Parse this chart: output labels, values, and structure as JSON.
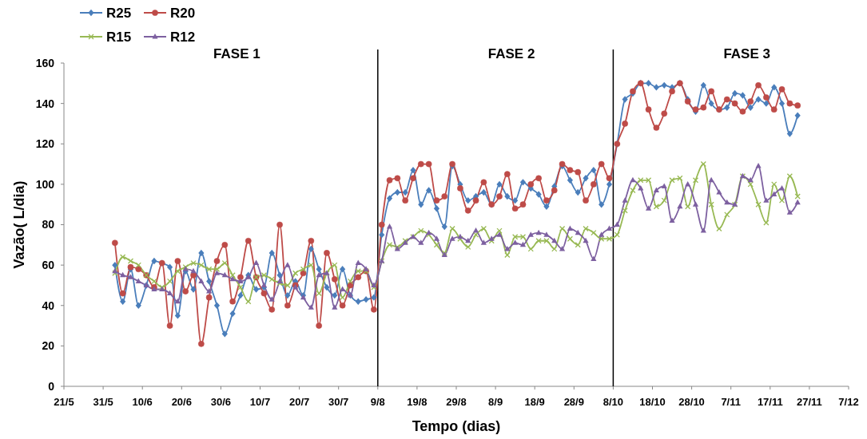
{
  "chart_data": {
    "type": "line",
    "xlabel": "Tempo (dias)",
    "ylabel": "Vazão( L/dia)",
    "annotations": [
      "FASE 1",
      "FASE 2",
      "FASE 3"
    ],
    "x": [
      "--06-03",
      "--06-05",
      "--06-07",
      "--06-09",
      "--06-11",
      "--06-13",
      "--06-15",
      "--06-17",
      "--06-19",
      "--06-21",
      "--06-23",
      "--06-25",
      "--06-27",
      "--06-29",
      "--07-01",
      "--07-03",
      "--07-05",
      "--07-07",
      "--07-09",
      "--07-11",
      "--07-13",
      "--07-15",
      "--07-17",
      "--07-19",
      "--07-21",
      "--07-23",
      "--07-25",
      "--07-27",
      "--07-29",
      "--07-31",
      "--08-02",
      "--08-04",
      "--08-06",
      "--08-08",
      "--08-10",
      "--08-12",
      "--08-14",
      "--08-16",
      "--08-18",
      "--08-20",
      "--08-22",
      "--08-24",
      "--08-26",
      "--08-28",
      "--08-30",
      "--09-01",
      "--09-03",
      "--09-05",
      "--09-07",
      "--09-09",
      "--09-11",
      "--09-13",
      "--09-15",
      "--09-17",
      "--09-19",
      "--09-21",
      "--09-23",
      "--09-25",
      "--09-27",
      "--09-29",
      "--10-01",
      "--10-03",
      "--10-05",
      "--10-07",
      "--10-09",
      "--10-11",
      "--10-13",
      "--10-15",
      "--10-17",
      "--10-19",
      "--10-21",
      "--10-23",
      "--10-25",
      "--10-27",
      "--10-29",
      "--10-31",
      "--11-02",
      "--11-04",
      "--11-06",
      "--11-08",
      "--11-10",
      "--11-12",
      "--11-14",
      "--11-16",
      "--11-18",
      "--11-20",
      "--11-22",
      "--11-24"
    ],
    "series": [
      {
        "name": "R25",
        "color": "#4a7ebb",
        "marker": "diamond",
        "values": [
          60,
          42,
          58,
          40,
          50,
          62,
          61,
          59,
          35,
          57,
          48,
          66,
          52,
          40,
          26,
          36,
          45,
          55,
          48,
          49,
          66,
          55,
          45,
          52,
          45,
          68,
          58,
          49,
          45,
          58,
          45,
          42,
          43,
          44,
          75,
          93,
          96,
          96,
          107,
          90,
          97,
          88,
          79,
          109,
          100,
          92,
          94,
          96,
          90,
          100,
          94,
          92,
          101,
          98,
          95,
          89,
          99,
          109,
          102,
          96,
          103,
          107,
          90,
          100,
          120,
          142,
          145,
          150,
          150,
          148,
          149,
          148,
          150,
          142,
          136,
          149,
          140,
          137,
          138,
          145,
          144,
          138,
          142,
          140,
          148,
          140,
          125,
          134
        ]
      },
      {
        "name": "R20",
        "color": "#be4b48",
        "marker": "circle",
        "values": [
          71,
          46,
          59,
          58,
          55,
          49,
          61,
          30,
          62,
          47,
          55,
          21,
          44,
          62,
          70,
          42,
          54,
          72,
          54,
          46,
          38,
          80,
          40,
          50,
          56,
          72,
          30,
          66,
          53,
          40,
          50,
          54,
          57,
          38,
          80,
          102,
          103,
          92,
          103,
          110,
          110,
          92,
          94,
          110,
          98,
          87,
          92,
          101,
          90,
          94,
          105,
          88,
          90,
          100,
          103,
          92,
          97,
          110,
          107,
          106,
          92,
          100,
          110,
          103,
          120,
          130,
          146,
          150,
          137,
          128,
          135,
          146,
          150,
          141,
          137,
          138,
          146,
          137,
          142,
          140,
          136,
          141,
          149,
          143,
          137,
          147,
          140,
          139
        ]
      },
      {
        "name": "R15",
        "color": "#98b954",
        "marker": "cross",
        "values": [
          56,
          64,
          62,
          60,
          55,
          52,
          49,
          52,
          57,
          59,
          61,
          60,
          58,
          58,
          61,
          55,
          49,
          42,
          54,
          55,
          53,
          51,
          50,
          56,
          58,
          60,
          46,
          56,
          60,
          44,
          52,
          57,
          57,
          49,
          62,
          70,
          69,
          72,
          74,
          77,
          75,
          70,
          66,
          78,
          73,
          69,
          75,
          78,
          72,
          77,
          65,
          74,
          74,
          68,
          72,
          72,
          68,
          78,
          73,
          70,
          78,
          76,
          73,
          73,
          75,
          87,
          97,
          102,
          102,
          89,
          92,
          102,
          103,
          89,
          102,
          110,
          90,
          78,
          85,
          90,
          104,
          100,
          90,
          81,
          100,
          92,
          104,
          94
        ]
      },
      {
        "name": "R12",
        "color": "#7d60a0",
        "marker": "triangle",
        "values": [
          57,
          55,
          54,
          52,
          50,
          48,
          48,
          46,
          42,
          58,
          57,
          52,
          47,
          56,
          55,
          53,
          52,
          54,
          61,
          50,
          43,
          52,
          60,
          49,
          44,
          39,
          55,
          56,
          39,
          48,
          45,
          61,
          58,
          50,
          62,
          79,
          68,
          71,
          74,
          71,
          76,
          73,
          65,
          73,
          74,
          72,
          77,
          71,
          73,
          75,
          68,
          71,
          70,
          75,
          76,
          75,
          72,
          68,
          78,
          76,
          72,
          63,
          75,
          78,
          80,
          92,
          102,
          98,
          88,
          97,
          99,
          82,
          89,
          100,
          90,
          77,
          102,
          96,
          91,
          90,
          104,
          102,
          109,
          92,
          95,
          98,
          86,
          91
        ]
      }
    ],
    "xlim": [
      "--05-21",
      "--12-07"
    ],
    "xticks": [
      {
        "value": "--05-21",
        "label": "21/5"
      },
      {
        "value": "--05-31",
        "label": "31/5"
      },
      {
        "value": "--06-10",
        "label": "10/6"
      },
      {
        "value": "--06-20",
        "label": "20/6"
      },
      {
        "value": "--06-30",
        "label": "30/6"
      },
      {
        "value": "--07-10",
        "label": "10/7"
      },
      {
        "value": "--07-20",
        "label": "20/7"
      },
      {
        "value": "--07-30",
        "label": "30/7"
      },
      {
        "value": "--08-09",
        "label": "9/8"
      },
      {
        "value": "--08-19",
        "label": "19/8"
      },
      {
        "value": "--08-29",
        "label": "29/8"
      },
      {
        "value": "--09-08",
        "label": "8/9"
      },
      {
        "value": "--09-18",
        "label": "18/9"
      },
      {
        "value": "--09-28",
        "label": "28/9"
      },
      {
        "value": "--10-08",
        "label": "8/10"
      },
      {
        "value": "--10-18",
        "label": "18/10"
      },
      {
        "value": "--10-28",
        "label": "28/10"
      },
      {
        "value": "--11-07",
        "label": "7/11"
      },
      {
        "value": "--11-17",
        "label": "17/11"
      },
      {
        "value": "--11-27",
        "label": "27/11"
      },
      {
        "value": "--12-07",
        "label": "7/12"
      }
    ],
    "ylim": [
      0,
      160
    ],
    "yticks": [
      0,
      20,
      40,
      60,
      80,
      100,
      120,
      140,
      160
    ],
    "ref_lines": [
      {
        "axis": "x",
        "value": "--08-09",
        "color": "#000000"
      },
      {
        "axis": "x",
        "value": "--10-08",
        "color": "#000000"
      }
    ],
    "legend": "top left",
    "grid": false
  }
}
